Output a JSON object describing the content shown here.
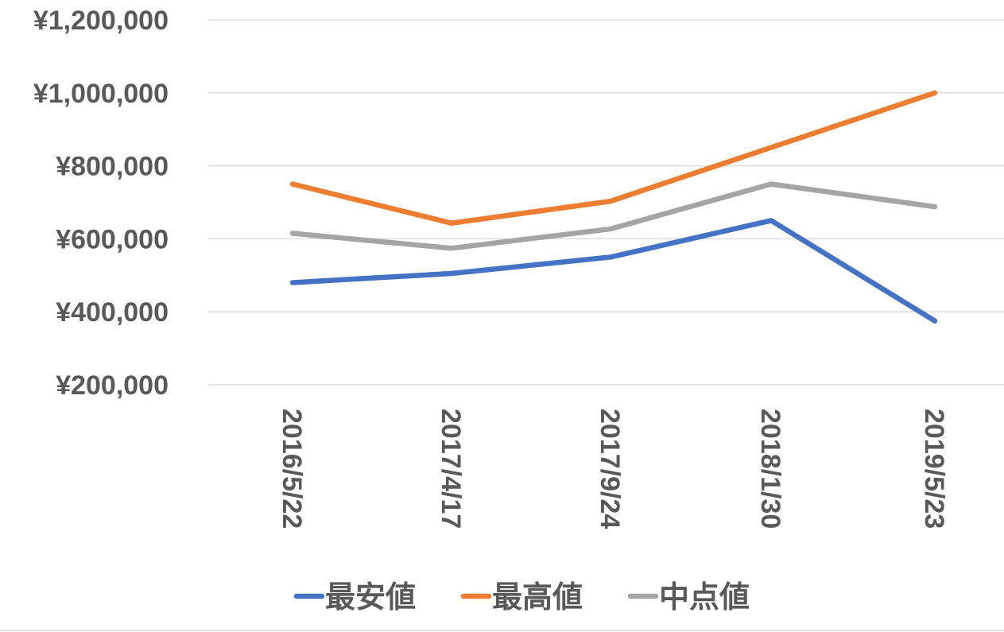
{
  "chart_data": {
    "type": "line",
    "categories": [
      "2016/5/22",
      "2017/4/17",
      "2017/9/24",
      "2018/1/30",
      "2019/5/23"
    ],
    "series": [
      {
        "name": "最安値",
        "color": "#4472C4",
        "values": [
          480000,
          505000,
          550000,
          650000,
          375000
        ]
      },
      {
        "name": "最高値",
        "color": "#ED7D31",
        "values": [
          750000,
          643000,
          703000,
          850000,
          1000000
        ]
      },
      {
        "name": "中点値",
        "color": "#A5A5A5",
        "values": [
          615000,
          574000,
          627000,
          750000,
          688000
        ]
      }
    ],
    "y_ticks": [
      "¥200,000",
      "¥400,000",
      "¥600,000",
      "¥800,000",
      "¥1,000,000",
      "¥1,200,000"
    ],
    "ylim": [
      200000,
      1200000
    ],
    "grid": true,
    "legend_position": "bottom",
    "gridline_color": "#D9D9D9",
    "text_color": "#595959"
  }
}
